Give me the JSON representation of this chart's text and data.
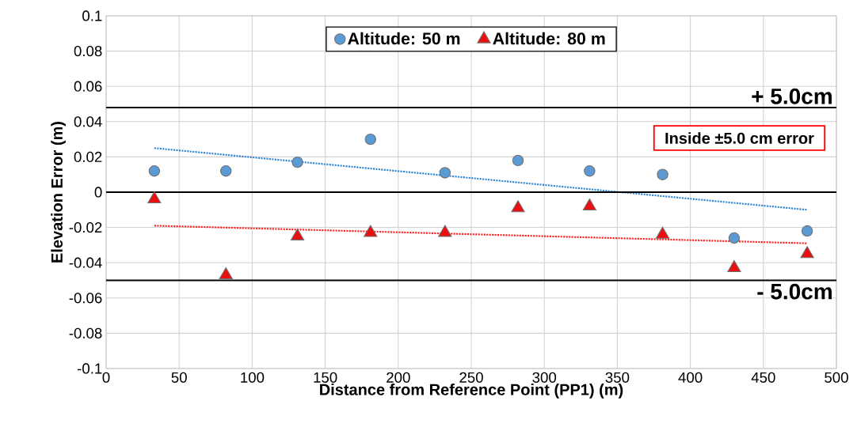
{
  "chart_data": {
    "type": "scatter",
    "xlabel": "Distance from Reference Point (PP1) (m)",
    "ylabel": "Elevation Error (m)",
    "series": [
      {
        "name": "Altitude: 50 m",
        "color": "#5b9bd5",
        "marker": "circle",
        "x": [
          33,
          82,
          131,
          181,
          232,
          282,
          331,
          381,
          430,
          480
        ],
        "values": [
          0.012,
          0.012,
          0.017,
          0.03,
          0.011,
          0.018,
          0.012,
          0.01,
          -0.026,
          -0.022
        ]
      },
      {
        "name": "Altitude: 80 m",
        "color": "#e81010",
        "marker": "triangle",
        "x": [
          33,
          82,
          131,
          181,
          232,
          282,
          331,
          381,
          430,
          480
        ],
        "values": [
          -0.004,
          -0.047,
          -0.025,
          -0.023,
          -0.023,
          -0.009,
          -0.008,
          -0.024,
          -0.043,
          -0.035
        ]
      },
      {
        "type": "line",
        "color": "#2e86d4",
        "line_style": "dotted",
        "marker": "none",
        "x": [
          33,
          480
        ],
        "values": [
          0.025,
          -0.01
        ]
      },
      {
        "type": "line",
        "color": "#ff2020",
        "line_style": "dotted",
        "marker": "none",
        "x": [
          33,
          480
        ],
        "values": [
          -0.019,
          -0.029
        ]
      }
    ],
    "xlim": [
      0,
      500
    ],
    "xticks": [
      0,
      50,
      100,
      150,
      200,
      250,
      300,
      350,
      400,
      450,
      500
    ],
    "ylim": [
      -0.1,
      0.1
    ],
    "yticks": [
      -0.1,
      -0.08,
      -0.06,
      -0.04,
      -0.02,
      0,
      0.02,
      0.04,
      0.06,
      0.08,
      0.1
    ],
    "ref_lines": [
      {
        "axis": "y",
        "value": 0.048,
        "label": "+ 5.0cm",
        "color": "#000000"
      },
      {
        "axis": "y",
        "value": 0,
        "color": "#000000"
      },
      {
        "axis": "y",
        "value": -0.05,
        "label": "- 5.0cm",
        "color": "#000000"
      }
    ],
    "annotations": [
      "Inside ±5.0 cm error"
    ],
    "grid": true,
    "legend": "top"
  }
}
